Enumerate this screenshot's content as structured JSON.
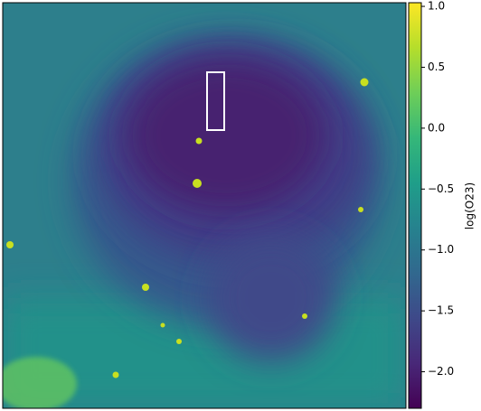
{
  "chart_data": {
    "type": "image",
    "colormap": "viridis",
    "colorbar_label": "log(O23)",
    "clim": [
      -2.3,
      1.03
    ],
    "cticks": [
      {
        "value": 1.0,
        "label": "1.0"
      },
      {
        "value": 0.5,
        "label": "0.5"
      },
      {
        "value": 0.0,
        "label": "0.0"
      },
      {
        "value": -0.5,
        "label": "−0.5"
      },
      {
        "value": -1.0,
        "label": "−1.0"
      },
      {
        "value": -1.5,
        "label": "−1.5"
      },
      {
        "value": -2.0,
        "label": "−2.0"
      }
    ]
  }
}
